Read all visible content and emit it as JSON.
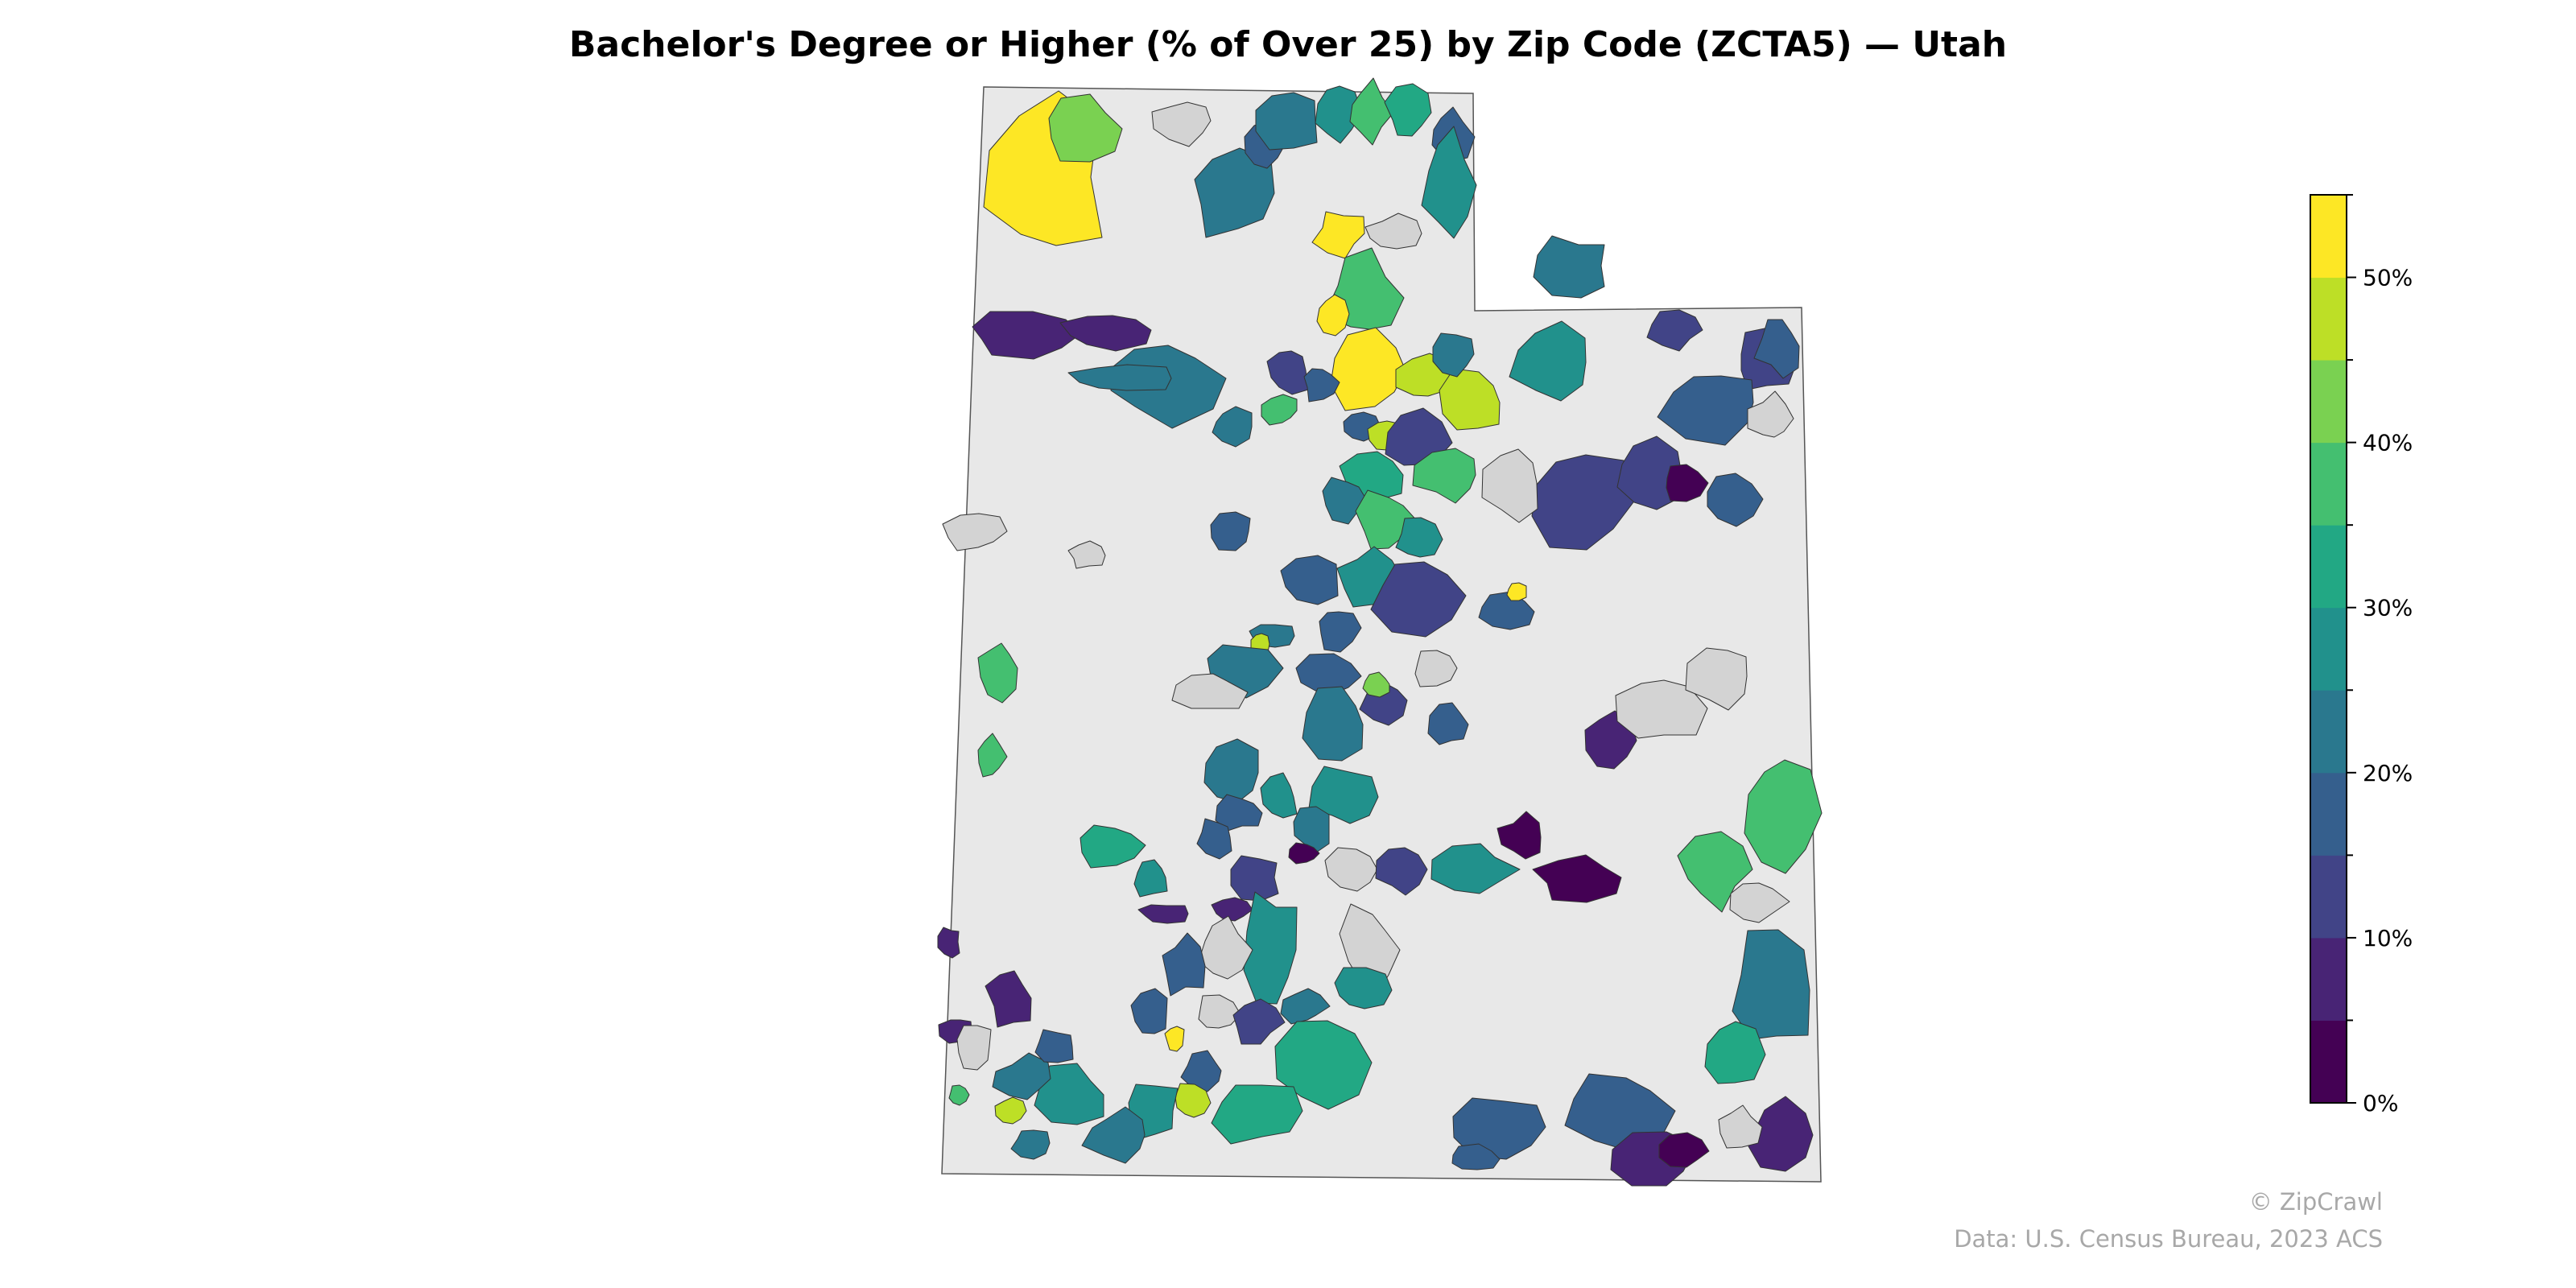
{
  "title": "Bachelor's Degree or Higher (% of Over 25) by Zip Code (ZCTA5) — Utah",
  "credits": {
    "brand": "© ZipCrawl",
    "source": "Data: U.S. Census Bureau, 2023 ACS"
  },
  "colors": {
    "state_fill": "#e8e8e8",
    "no_data": "#d3d3d3",
    "border": "#555555"
  },
  "colorbar": {
    "min": 0,
    "max": 55,
    "tick_labels": [
      {
        "value": 0,
        "label": "0%"
      },
      {
        "value": 10,
        "label": "10%"
      },
      {
        "value": 20,
        "label": "20%"
      },
      {
        "value": 30,
        "label": "30%"
      },
      {
        "value": 40,
        "label": "40%"
      },
      {
        "value": 50,
        "label": "50%"
      }
    ],
    "minor_ticks": [
      5,
      15,
      25,
      35,
      45,
      55
    ],
    "bins": [
      {
        "from": 0,
        "to": 5,
        "color": "#440154"
      },
      {
        "from": 5,
        "to": 10,
        "color": "#482475"
      },
      {
        "from": 10,
        "to": 15,
        "color": "#414487"
      },
      {
        "from": 15,
        "to": 20,
        "color": "#355f8d"
      },
      {
        "from": 20,
        "to": 25,
        "color": "#2a788e"
      },
      {
        "from": 25,
        "to": 30,
        "color": "#21918c"
      },
      {
        "from": 30,
        "to": 35,
        "color": "#22a884"
      },
      {
        "from": 35,
        "to": 40,
        "color": "#44bf70"
      },
      {
        "from": 40,
        "to": 45,
        "color": "#7ad151"
      },
      {
        "from": 45,
        "to": 50,
        "color": "#bddf26"
      },
      {
        "from": 50,
        "to": 55,
        "color": "#fde725"
      }
    ]
  }
}
